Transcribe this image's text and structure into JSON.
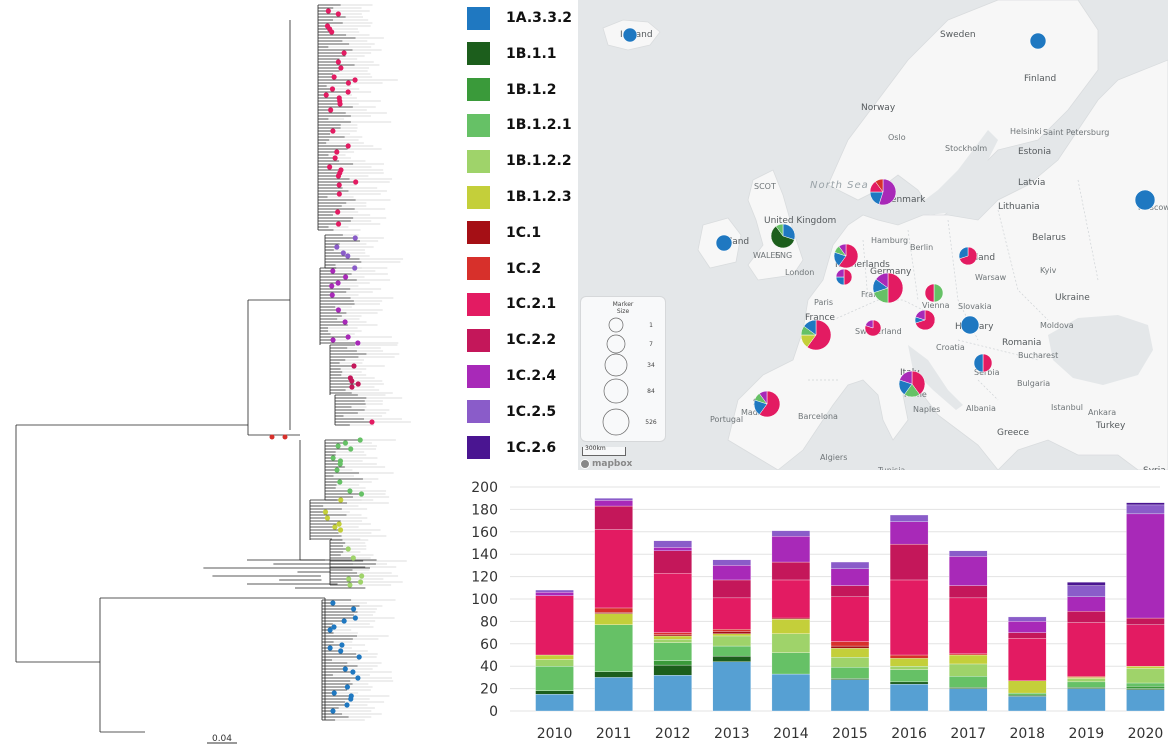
{
  "legend": {
    "items": [
      {
        "label": "1A.3.3.2",
        "color": "#1f78c1"
      },
      {
        "label": "1B.1.1",
        "color": "#1c5e1c"
      },
      {
        "label": "1B.1.2",
        "color": "#3a9a3a"
      },
      {
        "label": "1B.1.2.1",
        "color": "#66c166"
      },
      {
        "label": "1B.1.2.2",
        "color": "#9fd36a"
      },
      {
        "label": "1B.1.2.3",
        "color": "#c4cf3a"
      },
      {
        "label": "1C.1",
        "color": "#a50f15"
      },
      {
        "label": "1C.2",
        "color": "#d7302b"
      },
      {
        "label": "1C.2.1",
        "color": "#e31b62"
      },
      {
        "label": "1C.2.2",
        "color": "#c4175a"
      },
      {
        "label": "1C.2.4",
        "color": "#a829b8"
      },
      {
        "label": "1C.2.5",
        "color": "#8a5cc9"
      },
      {
        "label": "1C.2.6",
        "color": "#4a1591"
      }
    ]
  },
  "tree": {
    "scale_label": "0.04"
  },
  "map": {
    "labels": {
      "iceland": "Iceland",
      "sweden": "Sweden",
      "finland": "Finland",
      "norway": "Norway",
      "oslo": "Oslo",
      "stockholm": "Stockholm",
      "helsinki": "Helsinki",
      "st_petersburg": "Saint Petersburg",
      "estonia": "Estonia",
      "latvia": "Latvia",
      "lithuania": "Lithuania",
      "north_sea": "North Sea",
      "scot": "SCOT",
      "uk": "United Kingdom",
      "wales": "WALES",
      "eng": "ENG",
      "ireland": "Ireland",
      "london": "London",
      "denmark": "Denmark",
      "hamburg": "Hamburg",
      "berlin": "Berlin",
      "netherlands": "Netherlands",
      "germany": "Germany",
      "frankfurt": "Frankfurt",
      "poland": "Poland",
      "warsaw": "Warsaw",
      "belarus": "Belarus",
      "ukraine": "Ukraine",
      "kyiv": "Kyiv",
      "moscow": "Moscow",
      "france": "France",
      "paris": "Paris",
      "switzerland": "Switzerland",
      "vienna": "Vienna",
      "slovakia": "Slovakia",
      "hungary": "Hungary",
      "moldova": "Moldova",
      "romania": "Romania",
      "bucharest": "Bucharest",
      "croatia": "Croatia",
      "serbia": "Serbia",
      "bulgaria": "Bulgaria",
      "italy": "Italy",
      "rome": "Rome",
      "naples": "Naples",
      "albania": "Albania",
      "greece": "Greece",
      "turkey": "Turkey",
      "istanbul": "Istanbul",
      "ankara": "Ankara",
      "spain": "Spain",
      "madrid": "Madrid",
      "barcelona": "Barcelona",
      "portugal": "Portugal",
      "algiers": "Algiers",
      "tunisia": "Tunisia",
      "syria": "Syria"
    },
    "marker_legend": {
      "title": "Marker Size",
      "sizes": [
        "1",
        "7",
        "34",
        "84",
        "526"
      ]
    },
    "scale_label": "300km",
    "attribution": "mapbox",
    "markers": [
      {
        "place": "Iceland",
        "slices": [
          [
            "#1f78c1",
            1
          ]
        ]
      },
      {
        "place": "Finland",
        "slices": [
          [
            "#1f78c1",
            1
          ]
        ]
      },
      {
        "place": "Moscow",
        "slices": [
          [
            "#1f78c1",
            1
          ]
        ]
      },
      {
        "place": "Ireland",
        "slices": [
          [
            "#1f78c1",
            1
          ]
        ]
      },
      {
        "place": "United Kingdom",
        "slices": [
          [
            "#1f78c1",
            0.3
          ],
          [
            "#1c5e1c",
            0.6
          ],
          [
            "#66c166",
            0.1
          ]
        ]
      },
      {
        "place": "Denmark",
        "slices": [
          [
            "#a829b8",
            0.55
          ],
          [
            "#1f78c1",
            0.2
          ],
          [
            "#e31b62",
            0.15
          ],
          [
            "#d7302b",
            0.1
          ]
        ]
      },
      {
        "place": "Netherlands",
        "slices": [
          [
            "#e31b62",
            0.6
          ],
          [
            "#1f78c1",
            0.2
          ],
          [
            "#66c166",
            0.1
          ],
          [
            "#a829b8",
            0.1
          ]
        ]
      },
      {
        "place": "Belgium",
        "slices": [
          [
            "#e31b62",
            0.5
          ],
          [
            "#1f78c1",
            0.25
          ],
          [
            "#a829b8",
            0.25
          ]
        ]
      },
      {
        "place": "Germany",
        "slices": [
          [
            "#e31b62",
            0.5
          ],
          [
            "#66c166",
            0.2
          ],
          [
            "#1f78c1",
            0.15
          ],
          [
            "#a829b8",
            0.15
          ]
        ]
      },
      {
        "place": "Poland",
        "slices": [
          [
            "#e31b62",
            0.7
          ],
          [
            "#1f78c1",
            0.3
          ]
        ]
      },
      {
        "place": "Czechia",
        "slices": [
          [
            "#66c166",
            0.5
          ],
          [
            "#e31b62",
            0.5
          ]
        ]
      },
      {
        "place": "France",
        "slices": [
          [
            "#e31b62",
            0.6
          ],
          [
            "#c4cf3a",
            0.15
          ],
          [
            "#66c166",
            0.1
          ],
          [
            "#1f78c1",
            0.15
          ]
        ]
      },
      {
        "place": "Switzerland",
        "slices": [
          [
            "#e31b62",
            0.8
          ],
          [
            "#a829b8",
            0.2
          ]
        ]
      },
      {
        "place": "Austria",
        "slices": [
          [
            "#e31b62",
            0.7
          ],
          [
            "#1f78c1",
            0.1
          ],
          [
            "#a829b8",
            0.2
          ]
        ]
      },
      {
        "place": "Hungary",
        "slices": [
          [
            "#1f78c1",
            1
          ]
        ]
      },
      {
        "place": "Serbia",
        "slices": [
          [
            "#e31b62",
            0.5
          ],
          [
            "#1f78c1",
            0.5
          ]
        ]
      },
      {
        "place": "Italy",
        "slices": [
          [
            "#e31b62",
            0.4
          ],
          [
            "#66c166",
            0.2
          ],
          [
            "#1f78c1",
            0.2
          ],
          [
            "#a829b8",
            0.2
          ]
        ]
      },
      {
        "place": "Spain",
        "slices": [
          [
            "#e31b62",
            0.6
          ],
          [
            "#1f78c1",
            0.2
          ],
          [
            "#66c166",
            0.1
          ],
          [
            "#a829b8",
            0.1
          ]
        ]
      }
    ]
  },
  "chart_data": {
    "type": "bar",
    "categories": [
      "2010",
      "2011",
      "2012",
      "2013",
      "2014",
      "2015",
      "2016",
      "2017",
      "2018",
      "2019",
      "2020"
    ],
    "ylim": [
      0,
      200
    ],
    "yticks": [
      0,
      20,
      40,
      60,
      80,
      100,
      120,
      140,
      160,
      180,
      200
    ],
    "stacked": true,
    "grid": true,
    "series": [
      {
        "name": "1A.3.3.2",
        "color": "#56a0d3",
        "values": [
          15,
          30,
          32,
          44,
          33,
          28,
          24,
          20,
          13,
          20,
          19
        ]
      },
      {
        "name": "1B.1.1",
        "color": "#1c5e1c",
        "values": [
          3,
          5,
          9,
          5,
          0,
          1,
          2,
          1,
          1,
          1,
          1
        ]
      },
      {
        "name": "1B.1.2",
        "color": "#3a9a3a",
        "values": [
          0,
          0,
          4,
          0,
          0,
          0,
          0,
          0,
          0,
          0,
          2
        ]
      },
      {
        "name": "1B.1.2.1",
        "color": "#66c166",
        "values": [
          22,
          42,
          16,
          9,
          19,
          10,
          11,
          10,
          2,
          5,
          3
        ]
      },
      {
        "name": "1B.1.2.2",
        "color": "#9fd36a",
        "values": [
          6,
          0,
          3,
          9,
          17,
          9,
          3,
          11,
          0,
          3,
          13
        ]
      },
      {
        "name": "1B.1.2.3",
        "color": "#c4cf3a",
        "values": [
          4,
          10,
          3,
          2,
          13,
          8,
          7,
          8,
          11,
          1,
          2
        ]
      },
      {
        "name": "1C.1",
        "color": "#a50f15",
        "values": [
          0,
          1,
          1,
          2,
          1,
          2,
          0,
          0,
          0,
          0,
          0
        ]
      },
      {
        "name": "1C.2",
        "color": "#d7302b",
        "values": [
          0,
          4,
          2,
          2,
          0,
          4,
          3,
          1,
          0,
          1,
          0
        ]
      },
      {
        "name": "1C.2.1",
        "color": "#e31b62",
        "values": [
          53,
          70,
          53,
          28,
          34,
          40,
          67,
          50,
          38,
          48,
          37
        ]
      },
      {
        "name": "1C.2.2",
        "color": "#c4175a",
        "values": [
          0,
          21,
          20,
          16,
          16,
          10,
          32,
          11,
          5,
          10,
          6
        ]
      },
      {
        "name": "1C.2.4",
        "color": "#a829b8",
        "values": [
          3,
          5,
          3,
          13,
          23,
          15,
          20,
          26,
          10,
          13,
          93
        ]
      },
      {
        "name": "1C.2.5",
        "color": "#8a5cc9",
        "values": [
          2,
          2,
          6,
          5,
          5,
          6,
          6,
          5,
          4,
          10,
          8
        ]
      },
      {
        "name": "1C.2.6",
        "color": "#4a1591",
        "values": [
          0,
          0,
          0,
          0,
          0,
          0,
          0,
          0,
          0,
          3,
          2
        ]
      }
    ]
  }
}
